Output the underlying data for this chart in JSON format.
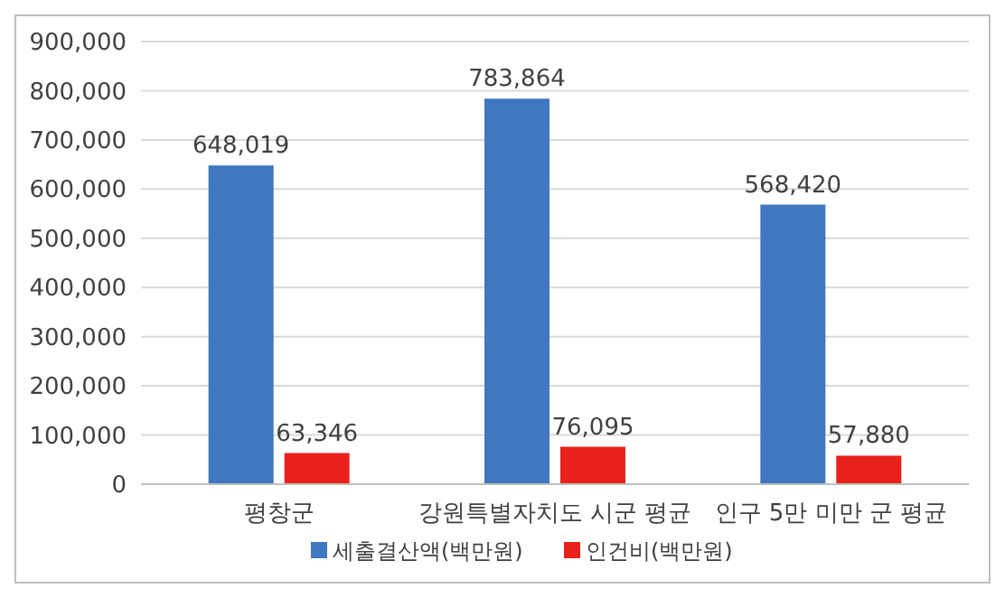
{
  "chart_data": {
    "type": "bar",
    "categories": [
      "평창군",
      "강원특별자치도 시군 평균",
      "인구 5만 미만 군 평균"
    ],
    "series": [
      {
        "name": "세출결산액(백만원)",
        "color": "#3f77c0",
        "values": [
          648019,
          783864,
          568420
        ],
        "value_labels": [
          "648,019",
          "783,864",
          "568,420"
        ]
      },
      {
        "name": "인건비(백만원)",
        "color": "#e8211b",
        "values": [
          63346,
          76095,
          57880
        ],
        "value_labels": [
          "63,346",
          "76,095",
          "57,880"
        ]
      }
    ],
    "ylim": [
      0,
      900000
    ],
    "yticks": [
      0,
      {
        "value": 100000,
        "label": "100,000"
      },
      {
        "value": 200000,
        "label": "200,000"
      },
      {
        "value": 300000,
        "label": "300,000"
      },
      {
        "value": 400000,
        "label": "400,000"
      },
      {
        "value": 500000,
        "label": "500,000"
      },
      {
        "value": 600000,
        "label": "600,000"
      },
      {
        "value": 700000,
        "label": "700,000"
      },
      {
        "value": 800000,
        "label": "800,000"
      },
      {
        "value": 900000,
        "label": "900,000"
      }
    ],
    "grid": "y",
    "legend": "bottom"
  }
}
